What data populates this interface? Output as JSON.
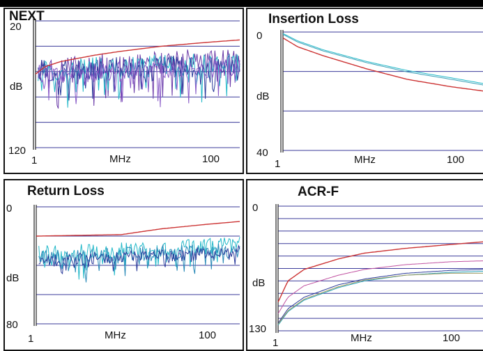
{
  "chart_data": [
    {
      "type": "line",
      "title": "NEXT",
      "xlabel": "MHz",
      "ylabel": "dB",
      "x_scale": "log",
      "xlim": [
        1,
        250
      ],
      "ylim": [
        20,
        120
      ],
      "y_inverted": true,
      "x_ticks": [
        "1",
        "100"
      ],
      "y_ticks": [
        "20",
        "120"
      ],
      "grid": true,
      "limit_line": {
        "color": "#cc3333",
        "x": [
          1,
          1.3,
          2,
          5,
          10,
          30,
          100,
          250
        ],
        "y": [
          62,
          56,
          52,
          47,
          44,
          40,
          37,
          35
        ]
      },
      "measured": [
        {
          "color": "#6a3aa8",
          "base": 57,
          "spread": 20
        },
        {
          "color": "#22b8c8",
          "base": 59,
          "spread": 18
        },
        {
          "color": "#2a3a9a",
          "base": 60,
          "spread": 18
        },
        {
          "color": "#8a5cc8",
          "base": 62,
          "spread": 16
        }
      ]
    },
    {
      "type": "line",
      "title": "Insertion Loss",
      "xlabel": "MHz",
      "ylabel": "dB",
      "x_scale": "log",
      "xlim": [
        1,
        250
      ],
      "ylim": [
        0,
        40
      ],
      "y_inverted": true,
      "x_ticks": [
        "1",
        "100"
      ],
      "y_ticks": [
        "0",
        "40"
      ],
      "grid": true,
      "limit_line": {
        "color": "#cc3333",
        "x": [
          1,
          1.5,
          3,
          10,
          30,
          100,
          250
        ],
        "y": [
          2,
          5,
          8,
          12.5,
          16,
          18.5,
          20
        ]
      },
      "measured": [
        {
          "color": "#22b8c8",
          "x": [
            1,
            1.5,
            3,
            10,
            30,
            100,
            250
          ],
          "y": [
            0.5,
            3,
            6,
            10,
            13,
            15.5,
            17.5
          ]
        },
        {
          "color": "#3aa0b8",
          "x": [
            1,
            1.5,
            3,
            10,
            30,
            100,
            250
          ],
          "y": [
            0.8,
            3.4,
            6.4,
            10.4,
            13.5,
            16,
            18
          ]
        }
      ]
    },
    {
      "type": "line",
      "title": "Return Loss",
      "xlabel": "MHz",
      "ylabel": "dB",
      "x_scale": "log",
      "xlim": [
        1,
        250
      ],
      "ylim": [
        0,
        80
      ],
      "y_inverted": true,
      "x_ticks": [
        "1",
        "100"
      ],
      "y_ticks": [
        "0",
        "80"
      ],
      "grid": true,
      "limit_line": {
        "color": "#cc3333",
        "x": [
          1,
          10,
          30,
          100,
          250
        ],
        "y": [
          20,
          19,
          15,
          12,
          10
        ]
      },
      "measured": [
        {
          "color": "#22b8c8",
          "base": 32,
          "spread": 11
        },
        {
          "color": "#2a8ab8",
          "base": 35,
          "spread": 10
        },
        {
          "color": "#2a3a9a",
          "base": 37,
          "spread": 9
        }
      ]
    },
    {
      "type": "line",
      "title": "ACR-F",
      "xlabel": "MHz",
      "ylabel": "dB",
      "x_scale": "log",
      "xlim": [
        1,
        250
      ],
      "ylim": [
        0,
        130
      ],
      "y_inverted": true,
      "x_ticks": [
        "1",
        "100"
      ],
      "y_ticks": [
        "0",
        "130"
      ],
      "grid": true,
      "limit_line": {
        "color": "#cc3333",
        "x": [
          1,
          1.3,
          2,
          5,
          10,
          30,
          100,
          250
        ],
        "y": [
          100,
          78,
          66,
          55,
          49,
          44,
          40,
          37
        ]
      },
      "measured": [
        {
          "color": "#c050a0",
          "x": [
            1,
            1.3,
            2,
            5,
            10,
            30,
            100,
            250
          ],
          "y": [
            112,
            95,
            83,
            72,
            66,
            61,
            58,
            57
          ]
        },
        {
          "color": "#2a3a9a",
          "x": [
            1,
            1.3,
            2,
            5,
            10,
            30,
            100,
            250
          ],
          "y": [
            122,
            107,
            95,
            82,
            76,
            70,
            67,
            66
          ]
        },
        {
          "color": "#22a0b8",
          "x": [
            1,
            1.3,
            2,
            5,
            10,
            30,
            100,
            250
          ],
          "y": [
            124,
            110,
            98,
            85,
            78,
            72,
            69,
            68
          ]
        },
        {
          "color": "#a09a60",
          "x": [
            1,
            1.3,
            2,
            5,
            10,
            30,
            100,
            250
          ],
          "y": [
            123,
            109,
            97,
            84,
            77,
            72,
            70,
            70
          ]
        }
      ]
    }
  ]
}
